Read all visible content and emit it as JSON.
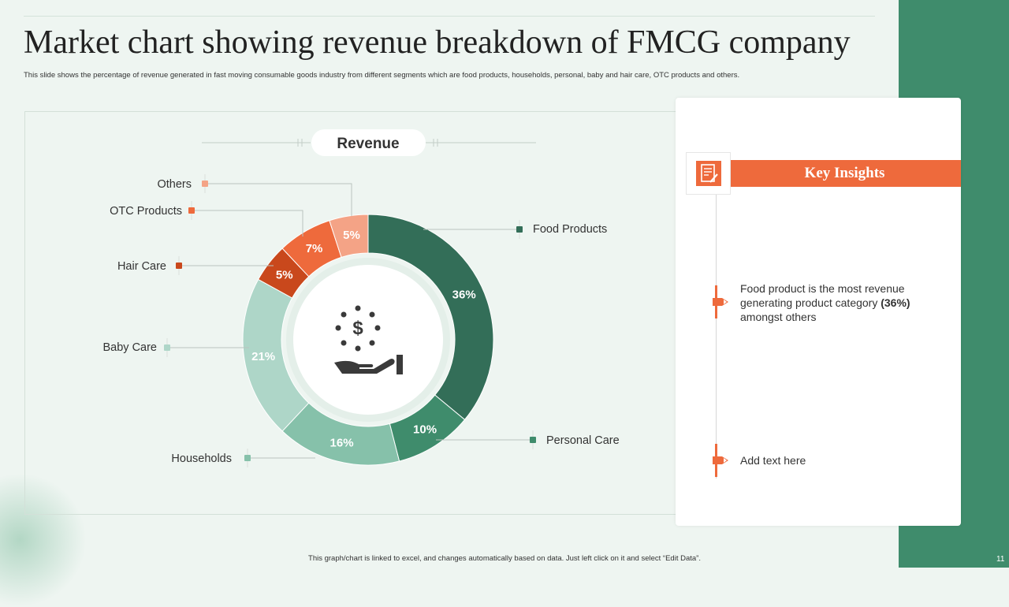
{
  "slide": {
    "title": "Market chart showing revenue breakdown of FMCG company",
    "subtitle": "This slide shows the percentage of revenue generated in fast moving consumable goods industry from different segments which are food products, households, personal, baby and hair care, OTC  products and others.",
    "footer_note": "This graph/chart is linked to excel, and changes automatically based on data.  Just left click on it and select “Edit Data”.",
    "page_number": "11"
  },
  "chart_data": {
    "type": "pie",
    "variant": "donut",
    "title": "Revenue",
    "categories": [
      "Food Products",
      "Personal Care",
      "Households",
      "Baby Care",
      "Hair Care",
      "OTC Products",
      "Others"
    ],
    "values": [
      36,
      10,
      16,
      21,
      5,
      7,
      5
    ],
    "data_labels": [
      "36%",
      "10%",
      "16%",
      "21%",
      "5%",
      "7%",
      "5%"
    ],
    "unit": "%",
    "colors": [
      "#336e58",
      "#3f8c6c",
      "#86c1aa",
      "#aed6c8",
      "#c9481c",
      "#ee6a3c",
      "#f4a386"
    ],
    "legend": "callouts"
  },
  "insights": {
    "heading": "Key Insights",
    "icon": "document-edit-icon",
    "items": [
      {
        "text_before": "Food product is the most revenue generating product category ",
        "emphasis": "(36%)",
        "text_after": " amongst others"
      },
      {
        "text": "Add text here"
      }
    ]
  },
  "colors": {
    "accent": "#ee6a3c",
    "brand_green": "#3f8c6c",
    "background": "#eef5f1"
  }
}
